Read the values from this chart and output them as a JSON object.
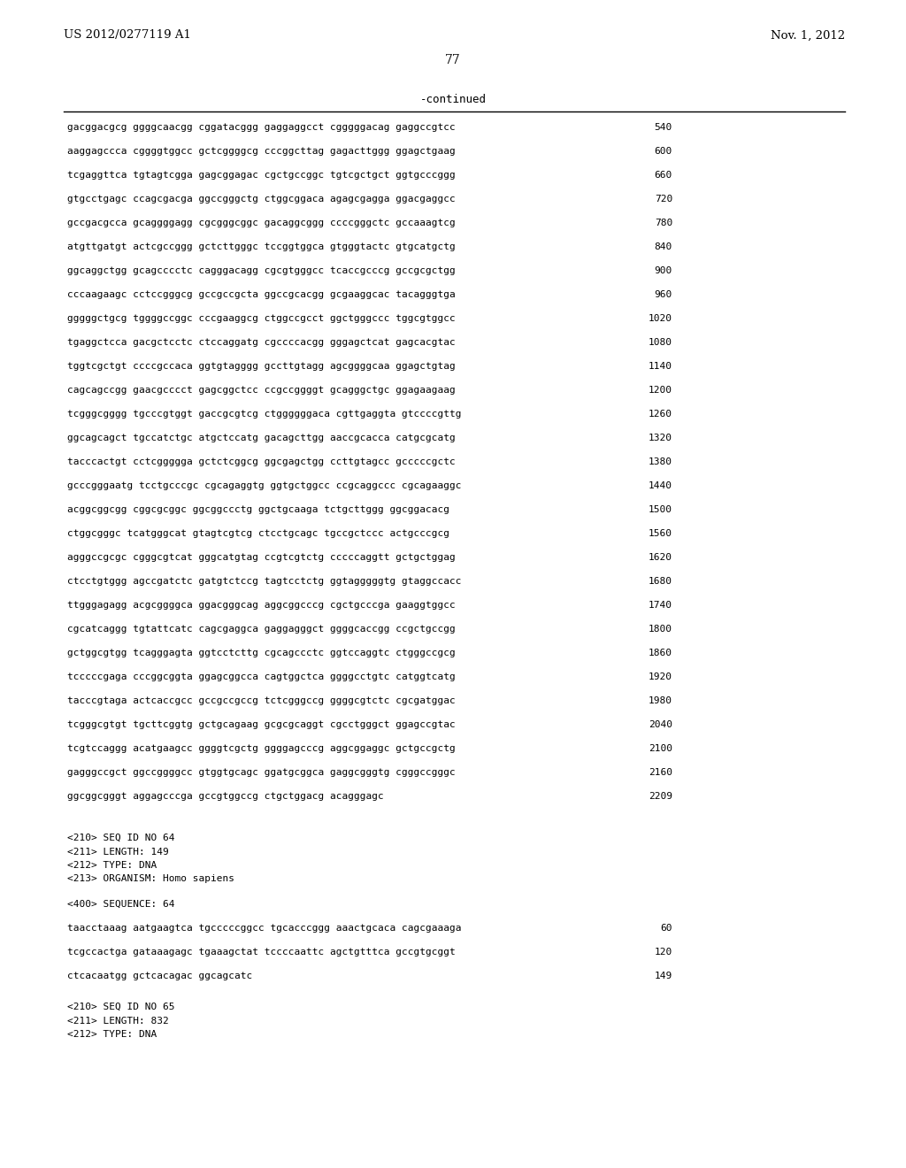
{
  "header_left": "US 2012/0277119 A1",
  "header_right": "Nov. 1, 2012",
  "page_number": "77",
  "continued_label": "-continued",
  "background_color": "#ffffff",
  "sequence_lines": [
    [
      "gacggacgcg ggggcaacgg cggatacggg gaggaggcct cgggggacag gaggccgtcc",
      "540"
    ],
    [
      "aaggagccca cggggtggcc gctcggggcg cccggcttag gagacttggg ggagctgaag",
      "600"
    ],
    [
      "tcgaggttca tgtagtcgga gagcggagac cgctgccggc tgtcgctgct ggtgcccggg",
      "660"
    ],
    [
      "gtgcctgagc ccagcgacga ggccgggctg ctggcggaca agagcgagga ggacgaggcc",
      "720"
    ],
    [
      "gccgacgcca gcaggggagg cgcgggcggc gacaggcggg ccccgggctc gccaaagtcg",
      "780"
    ],
    [
      "atgttgatgt actcgccggg gctcttgggc tccggtggca gtgggtactc gtgcatgctg",
      "840"
    ],
    [
      "ggcaggctgg gcagcccctc cagggacagg cgcgtgggcc tcaccgcccg gccgcgctgg",
      "900"
    ],
    [
      "cccaagaagc cctccgggcg gccgccgcta ggccgcacgg gcgaaggcac tacagggtga",
      "960"
    ],
    [
      "gggggctgcg tggggccggc cccgaaggcg ctggccgcct ggctgggccc tggcgtggcc",
      "1020"
    ],
    [
      "tgaggctcca gacgctcctc ctccaggatg cgccccacgg gggagctcat gagcacgtac",
      "1080"
    ],
    [
      "tggtcgctgt ccccgccaca ggtgtagggg gccttgtagg agcggggcaa ggagctgtag",
      "1140"
    ],
    [
      "cagcagccgg gaacgcccct gagcggctcc ccgccggggt gcagggctgc ggagaagaag",
      "1200"
    ],
    [
      "tcgggcgggg tgcccgtggt gaccgcgtcg ctggggggaca cgttgaggta gtccccgttg",
      "1260"
    ],
    [
      "ggcagcagct tgccatctgc atgctccatg gacagcttgg aaccgcacca catgcgcatg",
      "1320"
    ],
    [
      "tacccactgt cctcggggga gctctcggcg ggcgagctgg ccttgtagcc gcccccgctc",
      "1380"
    ],
    [
      "gcccgggaatg tcctgcccgc cgcagaggtg ggtgctggcc ccgcaggccc cgcagaaggc",
      "1440"
    ],
    [
      "acggcggcgg cggcgcggc ggcggccctg ggctgcaaga tctgcttggg ggcggacacg",
      "1500"
    ],
    [
      "ctggcgggc tcatgggcat gtagtcgtcg ctcctgcagc tgccgctccc actgcccgcg",
      "1560"
    ],
    [
      "agggccgcgc cgggcgtcat gggcatgtag ccgtcgtctg cccccaggtt gctgctggag",
      "1620"
    ],
    [
      "ctcctgtggg agccgatctc gatgtctccg tagtcctctg ggtagggggtg gtaggccacc",
      "1680"
    ],
    [
      "ttgggagagg acgcggggca ggacgggcag aggcggcccg cgctgcccga gaaggtggcc",
      "1740"
    ],
    [
      "cgcatcaggg tgtattcatc cagcgaggca gaggagggct ggggcaccgg ccgctgccgg",
      "1800"
    ],
    [
      "gctggcgtgg tcagggagta ggtcctcttg cgcagccctc ggtccaggtc ctgggccgcg",
      "1860"
    ],
    [
      "tcccccgaga cccggcggta ggagcggcca cagtggctca ggggcctgtc catggtcatg",
      "1920"
    ],
    [
      "tacccgtaga actcaccgcc gccgccgccg tctcgggccg ggggcgtctc cgcgatggac",
      "1980"
    ],
    [
      "tcgggcgtgt tgcttcggtg gctgcagaag gcgcgcaggt cgcctgggct ggagccgtac",
      "2040"
    ],
    [
      "tcgtccaggg acatgaagcc ggggtcgctg ggggagcccg aggcggaggc gctgccgctg",
      "2100"
    ],
    [
      "gagggccgct ggccggggcc gtggtgcagc ggatgcggca gaggcgggtg cgggccgggc",
      "2160"
    ],
    [
      "ggcggcgggt aggagcccga gccgtggccg ctgctggacg acagggagc",
      "2209"
    ]
  ],
  "meta_block1": [
    "<210> SEQ ID NO 64",
    "<211> LENGTH: 149",
    "<212> TYPE: DNA",
    "<213> ORGANISM: Homo sapiens"
  ],
  "meta_block2": [
    "<400> SEQUENCE: 64"
  ],
  "seq64_lines": [
    [
      "taacctaaag aatgaagtca tgcccccggcc tgcacccggg aaactgcaca cagcgaaaga",
      "60"
    ],
    [
      "tcgccactga gataaagagc tgaaagctat tccccaattc agctgtttca gccgtgcggt",
      "120"
    ],
    [
      "ctcacaatgg gctcacagac ggcagcatc",
      "149"
    ]
  ],
  "meta_block3": [
    "<210> SEQ ID NO 65",
    "<211> LENGTH: 832",
    "<212> TYPE: DNA"
  ]
}
